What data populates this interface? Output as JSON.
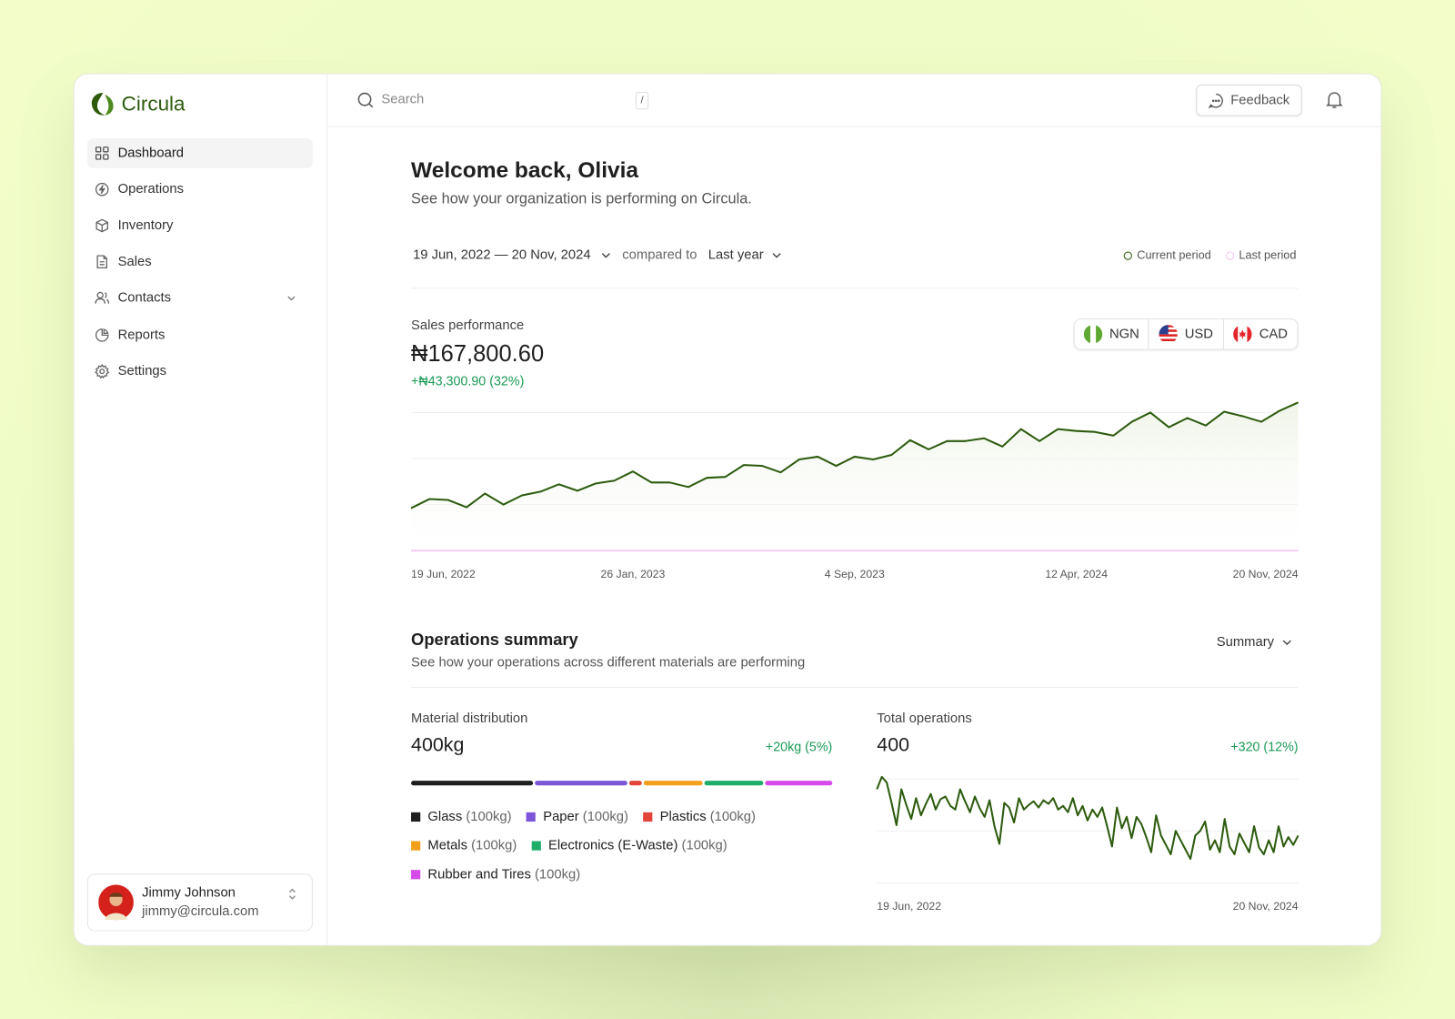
{
  "sidebar": {
    "brand": "Circula",
    "nav": [
      {
        "label": "Dashboard"
      },
      {
        "label": "Operations"
      },
      {
        "label": "Inventory"
      },
      {
        "label": "Sales"
      },
      {
        "label": "Contacts"
      },
      {
        "label": "Reports"
      },
      {
        "label": "Settings"
      }
    ],
    "user": {
      "name": "Jimmy Johnson",
      "email": "jimmy@circula.com"
    }
  },
  "topbar": {
    "search_placeholder": "Search",
    "shortcut": "/",
    "feedback": "Feedback"
  },
  "header": {
    "title": "Welcome back, Olivia",
    "subtitle": "See how your organization is performing on Circula."
  },
  "filters": {
    "date_range": "19 Jun, 2022 — 20 Nov, 2024",
    "compared_to": "compared to",
    "comparison": "Last year"
  },
  "sales": {
    "label": "Sales performance",
    "total": "₦167,800.60",
    "change": "+₦43,300.90 (32%)",
    "currencies": [
      "NGN",
      "USD",
      "CAD"
    ],
    "chart": {
      "type": "line",
      "x_labels": [
        "19 Jun, 2022",
        "26 Jan, 2023",
        "4 Sep, 2023",
        "12 Apr, 2024",
        "20 Nov, 2024"
      ],
      "ylim": [
        0,
        3.25
      ],
      "yticks": [
        1,
        2,
        3
      ],
      "grid": true,
      "series": [
        {
          "name": "Current period",
          "color": "#2d5b0e",
          "area": true,
          "values": [
            0.92,
            1.12,
            1.1,
            0.94,
            1.24,
            1.0,
            1.2,
            1.28,
            1.44,
            1.3,
            1.46,
            1.52,
            1.72,
            1.48,
            1.48,
            1.38,
            1.58,
            1.6,
            1.86,
            1.84,
            1.7,
            1.98,
            2.04,
            1.84,
            2.04,
            1.98,
            2.08,
            2.4,
            2.2,
            2.38,
            2.38,
            2.44,
            2.26,
            2.64,
            2.38,
            2.64,
            2.6,
            2.58,
            2.5,
            2.8,
            3.0,
            2.68,
            2.88,
            2.72,
            3.02,
            2.92,
            2.8,
            3.04,
            3.22
          ]
        },
        {
          "name": "Last period",
          "color": "#f5c6f0",
          "area": false,
          "values": [
            0,
            0,
            0,
            0,
            0,
            0,
            0,
            0,
            0,
            0,
            0,
            0,
            0,
            0,
            0,
            0,
            0,
            0,
            0,
            0,
            0,
            0,
            0,
            0,
            0,
            0,
            0,
            0,
            0,
            0,
            0,
            0,
            0,
            0,
            0,
            0,
            0,
            0,
            0,
            0,
            0,
            0,
            0,
            0,
            0,
            0,
            0,
            0,
            0
          ]
        }
      ]
    }
  },
  "operations": {
    "title": "Operations summary",
    "subtitle": "See how your operations across different materials are performing",
    "view": "Summary",
    "material": {
      "label": "Material distribution",
      "total": "400kg",
      "change": "+20kg (5%)",
      "chart": {
        "type": "stacked-bar",
        "series": [
          {
            "name": "Glass",
            "amount": "(100kg)",
            "color": "#1f1f1f",
            "value": 29
          },
          {
            "name": "Paper",
            "amount": "(100kg)",
            "color": "#7e55d6",
            "value": 22
          },
          {
            "name": "Plastics",
            "amount": "(100kg)",
            "color": "#e3453a",
            "value": 3
          },
          {
            "name": "Metals",
            "amount": "(100kg)",
            "color": "#f2a01c",
            "value": 14
          },
          {
            "name": "Electronics (E-Waste)",
            "amount": "(100kg)",
            "color": "#1fae6a",
            "value": 14
          },
          {
            "name": "Rubber and Tires",
            "amount": "(100kg)",
            "color": "#d54ce8",
            "value": 16
          }
        ]
      }
    },
    "total_ops": {
      "label": "Total operations",
      "total": "400",
      "change": "+320 (12%)",
      "chart": {
        "type": "line",
        "x_labels": [
          "19 Jun, 2022",
          "20 Nov, 2024"
        ],
        "ylim": [
          0,
          2.1
        ],
        "yticks": [
          0,
          1,
          2
        ],
        "grid": true,
        "color": "#2d5b0e",
        "values": [
          1.8,
          2.04,
          1.93,
          1.54,
          1.11,
          1.8,
          1.5,
          1.23,
          1.63,
          1.3,
          1.52,
          1.71,
          1.41,
          1.61,
          1.66,
          1.48,
          1.41,
          1.8,
          1.57,
          1.36,
          1.66,
          1.43,
          1.27,
          1.59,
          1.09,
          0.75,
          1.54,
          1.45,
          1.16,
          1.63,
          1.41,
          1.5,
          1.57,
          1.45,
          1.59,
          1.52,
          1.63,
          1.41,
          1.48,
          1.36,
          1.63,
          1.3,
          1.48,
          1.2,
          1.41,
          1.27,
          1.45,
          1.09,
          0.7,
          1.45,
          1.05,
          1.27,
          0.86,
          1.27,
          1.13,
          0.88,
          0.59,
          1.3,
          0.91,
          0.73,
          0.55,
          1.0,
          0.82,
          0.64,
          0.46,
          0.91,
          1.0,
          1.18,
          0.64,
          0.82,
          0.59,
          1.23,
          0.7,
          0.55,
          0.95,
          0.77,
          0.59,
          1.09,
          0.68,
          0.55,
          0.82,
          0.59,
          1.09,
          0.7,
          0.88,
          0.73,
          0.91
        ]
      }
    }
  }
}
